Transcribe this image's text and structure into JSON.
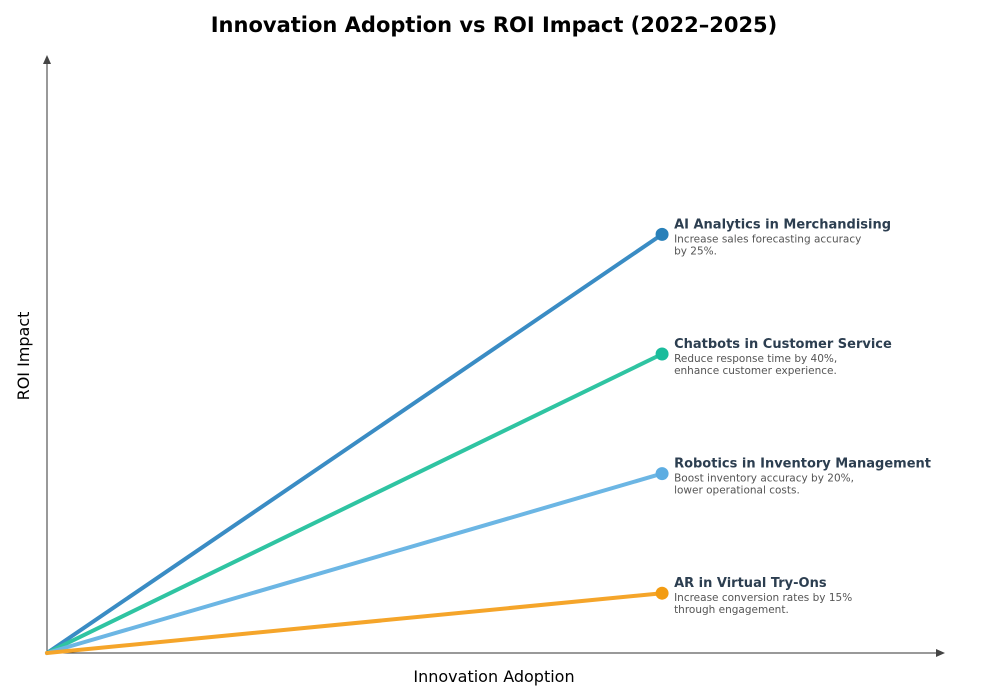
{
  "chart_data": {
    "type": "line",
    "title": "Innovation Adoption vs ROI Impact (2022–2025)",
    "xlabel": "Innovation Adoption",
    "ylabel": "ROI Impact",
    "xlim": [
      0,
      1.46
    ],
    "ylim": [
      0,
      1.0
    ],
    "grid": false,
    "series": [
      {
        "name": "AI Analytics in Merchandising",
        "description": [
          "Increase sales forecasting accuracy",
          "by 25%."
        ],
        "x": [
          0,
          1
        ],
        "y": [
          0,
          0.7
        ],
        "color": "#3a8cc4",
        "point_color": "#2980b9"
      },
      {
        "name": "Chatbots in Customer Service",
        "description": [
          "Reduce response time by 40%,",
          "enhance customer experience."
        ],
        "x": [
          0,
          1
        ],
        "y": [
          0,
          0.5
        ],
        "color": "#2fc4a2",
        "point_color": "#1abc9c"
      },
      {
        "name": "Robotics in Inventory Management",
        "description": [
          "Boost inventory accuracy by 20%,",
          "lower operational costs."
        ],
        "x": [
          0,
          1
        ],
        "y": [
          0,
          0.3
        ],
        "color": "#6cb6e4",
        "point_color": "#5dade2"
      },
      {
        "name": "AR in Virtual Try-Ons",
        "description": [
          "Increase conversion rates by 15%",
          "through engagement."
        ],
        "x": [
          0,
          1
        ],
        "y": [
          0,
          0.1
        ],
        "color": "#f5a52a",
        "point_color": "#f39c12"
      }
    ]
  }
}
